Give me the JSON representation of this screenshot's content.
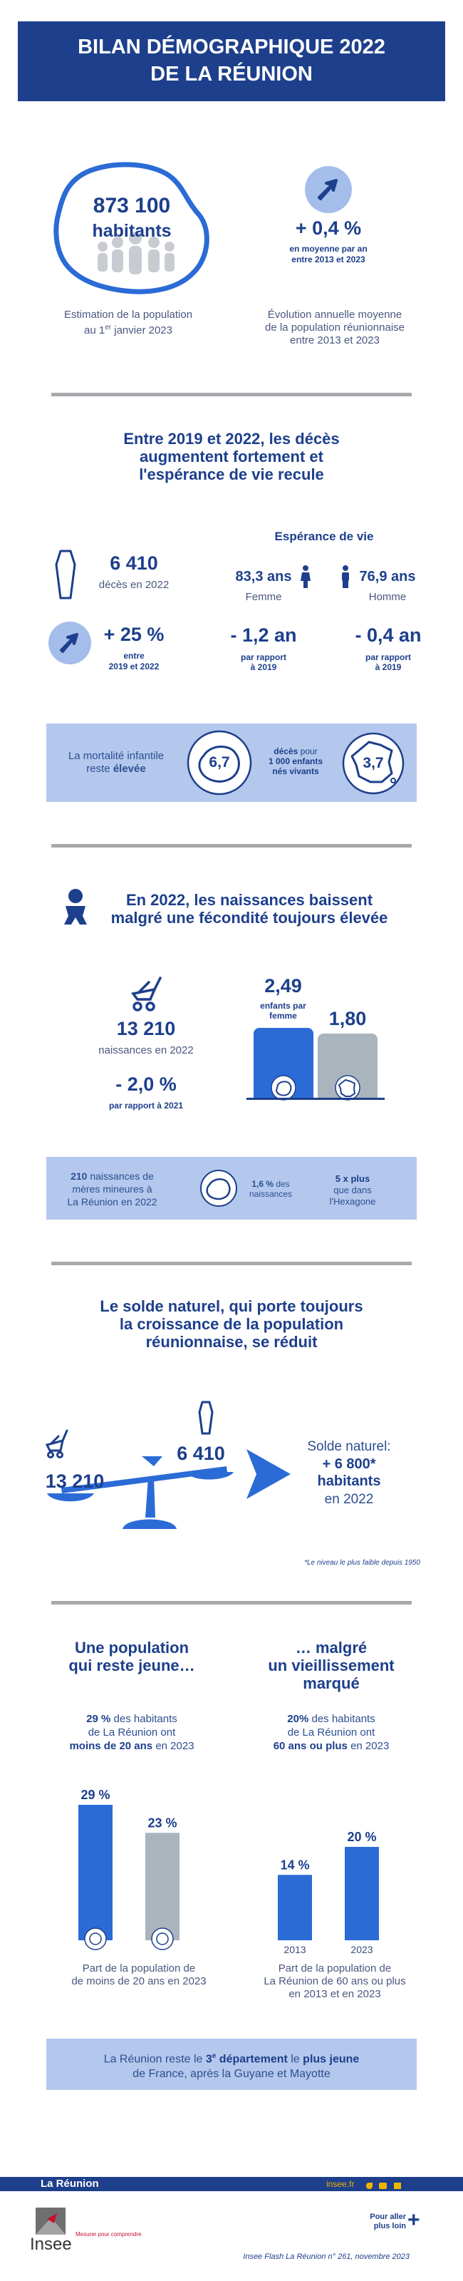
{
  "header": {
    "title_line1": "BILAN DÉMOGRAPHIQUE 2022",
    "title_line2": "DE LA RÉUNION"
  },
  "intro": {
    "population": "873 100",
    "population_unit": "habitants",
    "population_caption_1": "Estimation de la population",
    "population_caption_2a": "au 1",
    "population_caption_2sup": "er",
    "population_caption_2b": " janvier 2023",
    "growth": "+ 0,4 %",
    "growth_sub_1": "en moyenne par an",
    "growth_sub_2": "entre 2013 et 2023",
    "growth_caption_1": "Évolution annuelle moyenne",
    "growth_caption_2": "de la population réunionnaise",
    "growth_caption_3": "entre 2013 et 2023"
  },
  "deaths": {
    "title_1": "Entre 2019 et 2022, les décès",
    "title_2": "augmentent fortement et",
    "title_3": "l'espérance de vie recule",
    "count": "6 410",
    "count_label": "décès en 2022",
    "change": "+ 25 %",
    "change_sub_1": "entre",
    "change_sub_2": "2019 et 2022",
    "life_title": "Espérance de vie",
    "women_value": "83,3 ans",
    "women_label": "Femme",
    "men_value": "76,9 ans",
    "men_label": "Homme",
    "women_change": "- 1,2 an",
    "men_change": "- 0,4 an",
    "change_note_1": "par rapport",
    "change_note_2": "à 2019",
    "infant_text_1": "La mortalité infantile",
    "infant_text_2a": "reste ",
    "infant_text_2b": "élevée",
    "infant_reunion": "6,7",
    "infant_france": "3,7",
    "infant_mid_1a": "décès",
    "infant_mid_1b": " pour",
    "infant_mid_2": "1 000 enfants",
    "infant_mid_3": "nés vivants"
  },
  "births": {
    "title_1": "En 2022, les naissances baissent",
    "title_2": "malgré une fécondité toujours élevée",
    "count": "13 210",
    "count_label": "naissances en 2022",
    "change": "- 2,0 %",
    "change_sub": "par rapport à 2021",
    "fertility_reunion": "2,49",
    "fertility_label_1": "enfants par",
    "fertility_label_2": "femme",
    "fertility_france": "1,80",
    "minor_count": "210",
    "minor_text_1": " naissances de",
    "minor_text_2": "mères mineures à",
    "minor_text_3": "La Réunion en 2022",
    "minor_pct": "1,6 %",
    "minor_pct_1": " des",
    "minor_pct_2": "naissances",
    "minor_ratio_1": "5  x plus",
    "minor_ratio_2": "que dans",
    "minor_ratio_3": "l'Hexagone"
  },
  "natural": {
    "title_1": "Le solde naturel, qui porte toujours",
    "title_2": "la croissance de la population",
    "title_3": "réunionnaise, se réduit",
    "births": "13 210",
    "deaths": "6 410",
    "label": "Solde naturel:",
    "value": "+ 6 800*",
    "unit": "habitants",
    "year": "en 2022",
    "footnote": "*Le niveau le plus faible depuis 1950"
  },
  "age": {
    "left_title_1": "Une population",
    "left_title_2": "qui reste jeune…",
    "right_title_1": "… malgré",
    "right_title_2": "un vieillissement",
    "right_title_3": "marqué",
    "left_pct": "29 %",
    "left_text_1": " des habitants",
    "left_text_2": "de La Réunion ont",
    "left_text_3a": "moins de 20 ans",
    "left_text_3b": " en 2023",
    "right_pct": "20%",
    "right_text_1": " des habitants",
    "right_text_2": "de La Réunion ont",
    "right_text_3a": "60 ans ou plus",
    "right_text_3b": " en 2023",
    "bottom_text_1a": "La Réunion reste le ",
    "bottom_text_1b": "3",
    "bottom_text_1sup": "e",
    "bottom_text_1c": " département",
    "bottom_text_1d": " le ",
    "bottom_text_1e": "plus jeune",
    "bottom_text_2": "de France, après la Guyane et Mayotte"
  },
  "chart_data": [
    {
      "type": "bar",
      "categories": [
        "La Réunion",
        "France"
      ],
      "values": [
        29,
        23
      ],
      "value_labels": [
        "29 %",
        "23 %"
      ],
      "title": "",
      "caption_1": "Part de la population de",
      "caption_2": "de moins de 20 ans en 2023",
      "ylim": [
        0,
        29
      ],
      "colors": [
        "#2b6bd6",
        "#a9b4bd"
      ]
    },
    {
      "type": "bar",
      "categories": [
        "2013",
        "2023"
      ],
      "values": [
        14,
        20
      ],
      "value_labels": [
        "14 %",
        "20 %"
      ],
      "title": "",
      "caption_1": "Part de la population de",
      "caption_2": "La Réunion de 60 ans ou plus",
      "caption_3": "en 2013 et en 2023",
      "ylim": [
        0,
        29
      ],
      "colors": [
        "#2b6bd6",
        "#2b6bd6"
      ]
    }
  ],
  "footer": {
    "region": "La Réunion",
    "site": "insee.fr",
    "more_1": "Pour aller",
    "more_2": "plus loin",
    "brand": "Insee",
    "tagline": "Mesurer pour comprendre",
    "publication": "Insee Flash La Réunion n° 261, novembre 2023"
  },
  "colors": {
    "navy": "#1d3f8c",
    "blue": "#2b6bd6",
    "grey": "#a9b4bd",
    "light_band": "#b3c8ec"
  }
}
